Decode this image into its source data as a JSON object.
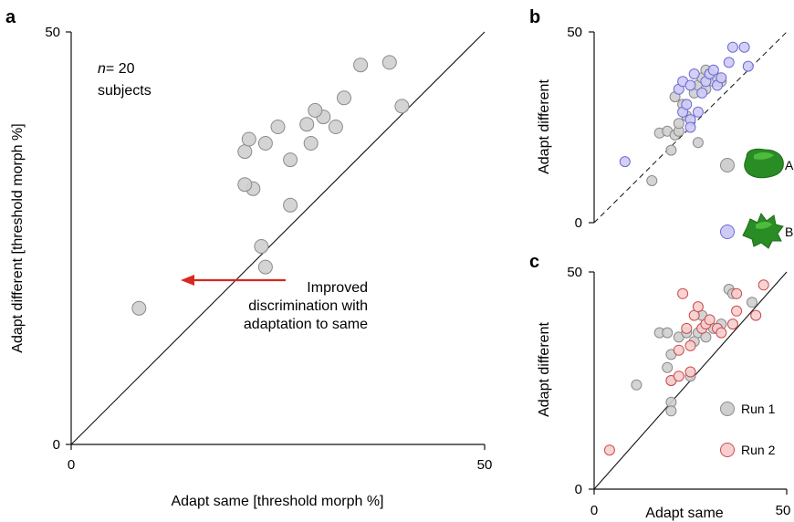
{
  "colors": {
    "gray_fill": "#cfcfcf",
    "gray_stroke": "#8a8a8a",
    "blue_fill": "#cdcbf4",
    "blue_stroke": "#6e6ad6",
    "red_fill": "#f6cfcf",
    "red_stroke": "#cc4b4b",
    "arrow": "#d9281e",
    "shape_green_dark": "#1f7a1f",
    "shape_green_light": "#4fbf3a"
  },
  "chart_data": [
    {
      "panel": "a",
      "type": "scatter",
      "xlabel": "Adapt same [threshold morph %]",
      "ylabel": "Adapt different [threshold morph %]",
      "xlim": [
        0,
        50
      ],
      "ylim": [
        0,
        50
      ],
      "xticks": [
        "0",
        "50"
      ],
      "yticks": [
        "0",
        "50"
      ],
      "diagonal": "solid",
      "annotation_n": "n",
      "annotation_count": "= 20",
      "annotation_subjects": "subjects",
      "arrow_text": [
        "Improved",
        "discrimination with",
        "adaptation to same"
      ],
      "points": [
        {
          "x": 8.2,
          "y": 16.5
        },
        {
          "x": 23.5,
          "y": 21.5
        },
        {
          "x": 23.0,
          "y": 24.0
        },
        {
          "x": 22.0,
          "y": 31.0
        },
        {
          "x": 21.0,
          "y": 31.5
        },
        {
          "x": 26.5,
          "y": 29.0
        },
        {
          "x": 21.0,
          "y": 35.5
        },
        {
          "x": 21.5,
          "y": 37.0
        },
        {
          "x": 23.5,
          "y": 36.5
        },
        {
          "x": 26.5,
          "y": 34.5
        },
        {
          "x": 25.0,
          "y": 38.5
        },
        {
          "x": 28.5,
          "y": 38.8
        },
        {
          "x": 29.0,
          "y": 36.5
        },
        {
          "x": 30.5,
          "y": 39.7
        },
        {
          "x": 32.0,
          "y": 38.5
        },
        {
          "x": 33.0,
          "y": 42.0
        },
        {
          "x": 35.0,
          "y": 46.0
        },
        {
          "x": 38.5,
          "y": 46.3
        },
        {
          "x": 40.0,
          "y": 41.0
        },
        {
          "x": 29.5,
          "y": 40.5
        }
      ]
    },
    {
      "panel": "b",
      "type": "scatter",
      "xlabel": "",
      "ylabel": "Adapt different",
      "xlim": [
        0,
        50
      ],
      "ylim": [
        0,
        50
      ],
      "xticks": [],
      "yticks": [
        "0",
        "50"
      ],
      "diagonal": "dashed",
      "series": [
        {
          "name": "A",
          "color": "gray",
          "points": [
            {
              "x": 15,
              "y": 11
            },
            {
              "x": 17,
              "y": 23.5
            },
            {
              "x": 19,
              "y": 24
            },
            {
              "x": 20,
              "y": 19
            },
            {
              "x": 21,
              "y": 23
            },
            {
              "x": 22,
              "y": 24
            },
            {
              "x": 22,
              "y": 26
            },
            {
              "x": 21,
              "y": 33
            },
            {
              "x": 23,
              "y": 31
            },
            {
              "x": 24,
              "y": 28
            },
            {
              "x": 26,
              "y": 34
            },
            {
              "x": 27,
              "y": 36
            },
            {
              "x": 28,
              "y": 38
            },
            {
              "x": 29,
              "y": 40
            },
            {
              "x": 30,
              "y": 39
            },
            {
              "x": 31,
              "y": 37
            },
            {
              "x": 32,
              "y": 38
            },
            {
              "x": 33,
              "y": 37
            },
            {
              "x": 27,
              "y": 21
            },
            {
              "x": 29,
              "y": 35
            }
          ]
        },
        {
          "name": "B",
          "color": "blue",
          "points": [
            {
              "x": 8,
              "y": 16
            },
            {
              "x": 23,
              "y": 29
            },
            {
              "x": 24,
              "y": 31
            },
            {
              "x": 25,
              "y": 27
            },
            {
              "x": 25,
              "y": 25
            },
            {
              "x": 22,
              "y": 35
            },
            {
              "x": 23,
              "y": 37
            },
            {
              "x": 25,
              "y": 36
            },
            {
              "x": 27,
              "y": 29
            },
            {
              "x": 28,
              "y": 34
            },
            {
              "x": 29,
              "y": 37
            },
            {
              "x": 30,
              "y": 39
            },
            {
              "x": 31,
              "y": 40
            },
            {
              "x": 32,
              "y": 36
            },
            {
              "x": 33,
              "y": 38
            },
            {
              "x": 35,
              "y": 42
            },
            {
              "x": 36,
              "y": 46
            },
            {
              "x": 39,
              "y": 46
            },
            {
              "x": 40,
              "y": 41
            },
            {
              "x": 26,
              "y": 39
            }
          ]
        }
      ],
      "legend": [
        {
          "label": "A",
          "color": "gray"
        },
        {
          "label": "B",
          "color": "blue"
        }
      ]
    },
    {
      "panel": "c",
      "type": "scatter",
      "xlabel": "Adapt same",
      "ylabel": "Adapt different",
      "xlim": [
        0,
        50
      ],
      "ylim": [
        0,
        50
      ],
      "xticks": [
        "0",
        "50"
      ],
      "yticks": [
        "0",
        "50"
      ],
      "diagonal": "solid",
      "series": [
        {
          "name": "Run 1",
          "color": "gray",
          "points": [
            {
              "x": 11,
              "y": 24
            },
            {
              "x": 17,
              "y": 36
            },
            {
              "x": 19,
              "y": 36
            },
            {
              "x": 20,
              "y": 31
            },
            {
              "x": 19,
              "y": 28
            },
            {
              "x": 20,
              "y": 25
            },
            {
              "x": 20,
              "y": 20
            },
            {
              "x": 20,
              "y": 18
            },
            {
              "x": 22,
              "y": 35
            },
            {
              "x": 24,
              "y": 36
            },
            {
              "x": 26,
              "y": 34
            },
            {
              "x": 27,
              "y": 36
            },
            {
              "x": 28,
              "y": 40
            },
            {
              "x": 29,
              "y": 35
            },
            {
              "x": 31,
              "y": 37
            },
            {
              "x": 33,
              "y": 38
            },
            {
              "x": 35,
              "y": 46
            },
            {
              "x": 36,
              "y": 45
            },
            {
              "x": 41,
              "y": 43
            },
            {
              "x": 25,
              "y": 26
            }
          ]
        },
        {
          "name": "Run 2",
          "color": "red",
          "points": [
            {
              "x": 4,
              "y": 9
            },
            {
              "x": 20,
              "y": 25
            },
            {
              "x": 22,
              "y": 26
            },
            {
              "x": 22,
              "y": 32
            },
            {
              "x": 23,
              "y": 45
            },
            {
              "x": 24,
              "y": 37
            },
            {
              "x": 25,
              "y": 33
            },
            {
              "x": 26,
              "y": 40
            },
            {
              "x": 27,
              "y": 42
            },
            {
              "x": 28,
              "y": 37
            },
            {
              "x": 29,
              "y": 38
            },
            {
              "x": 30,
              "y": 39
            },
            {
              "x": 32,
              "y": 37
            },
            {
              "x": 33,
              "y": 36
            },
            {
              "x": 36,
              "y": 38
            },
            {
              "x": 37,
              "y": 41
            },
            {
              "x": 37,
              "y": 45
            },
            {
              "x": 42,
              "y": 40
            },
            {
              "x": 44,
              "y": 47
            },
            {
              "x": 25,
              "y": 27
            }
          ]
        }
      ],
      "legend": [
        {
          "label": "Run 1",
          "color": "gray"
        },
        {
          "label": "Run 2",
          "color": "red"
        }
      ]
    }
  ]
}
